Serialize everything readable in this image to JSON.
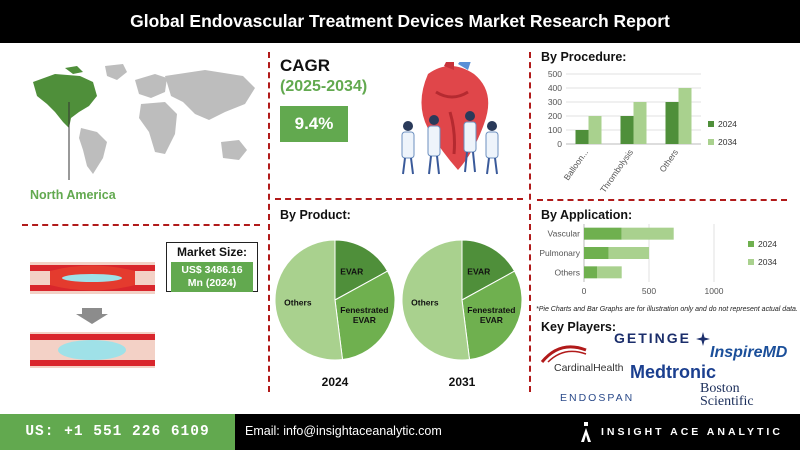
{
  "header": {
    "title": "Global Endovascular Treatment Devices Market Research Report"
  },
  "region": {
    "name": "North America"
  },
  "cagr": {
    "label": "CAGR",
    "period": "(2025-2034)",
    "value": "9.4%"
  },
  "market_size": {
    "label": "Market Size:",
    "value_line1": "US$ 3486.16",
    "value_line2": "Mn (2024)"
  },
  "product": {
    "title": "By Product:"
  },
  "procedure": {
    "title": "By Procedure:"
  },
  "application": {
    "title": "By Application:"
  },
  "disclaimer": "*Pie Charts and Bar Graphs are for illustration only and do not represent actual data.",
  "players": {
    "title": "Key Players:",
    "logos": [
      "GETINGE",
      "InspireMD",
      "CardinalHealth",
      "Medtronic",
      "ENDOSPAN",
      "Boston Scientific"
    ]
  },
  "footer": {
    "phone": "US: +1 551 226 6109",
    "email": "Email: info@insightaceanalytic.com",
    "brand": "INSIGHT ACE ANALYTIC"
  },
  "colors": {
    "dark_green": "#4f8f3a",
    "mid_green": "#6fb04f",
    "light_green": "#a9d18e",
    "accent_red": "#b11a1a"
  },
  "chart_data": [
    {
      "type": "pie",
      "title": "By Product:",
      "xlabel": "2024",
      "slices": [
        {
          "label": "EVAR",
          "value": 17
        },
        {
          "label": "Fenestrated EVAR",
          "value": 31
        },
        {
          "label": "Others",
          "value": 52
        }
      ]
    },
    {
      "type": "pie",
      "title": "By Product:",
      "xlabel": "2031",
      "slices": [
        {
          "label": "EVAR",
          "value": 17
        },
        {
          "label": "Fenestrated EVAR",
          "value": 31
        },
        {
          "label": "Others",
          "value": 52
        }
      ]
    },
    {
      "type": "bar",
      "orientation": "vertical",
      "title": "By Procedure:",
      "categories": [
        "Balloon...",
        "Thrombolysis",
        "Others"
      ],
      "series": [
        {
          "name": "2024",
          "values": [
            100,
            200,
            300
          ]
        },
        {
          "name": "2034",
          "values": [
            200,
            300,
            400
          ]
        }
      ],
      "ylim": [
        0,
        500
      ],
      "yticks": [
        "0",
        "100",
        "200",
        "300",
        "400",
        "500"
      ],
      "legend": "right"
    },
    {
      "type": "bar",
      "orientation": "horizontal-stacked",
      "title": "By Application:",
      "categories": [
        "Vascular",
        "Pulmonary",
        "Others"
      ],
      "series": [
        {
          "name": "2024",
          "values": [
            290,
            190,
            100
          ]
        },
        {
          "name": "2034",
          "values": [
            400,
            310,
            190
          ]
        }
      ],
      "xlim": [
        0,
        1000
      ],
      "xticks": [
        "0",
        "500",
        "1000"
      ],
      "legend": "right"
    }
  ]
}
